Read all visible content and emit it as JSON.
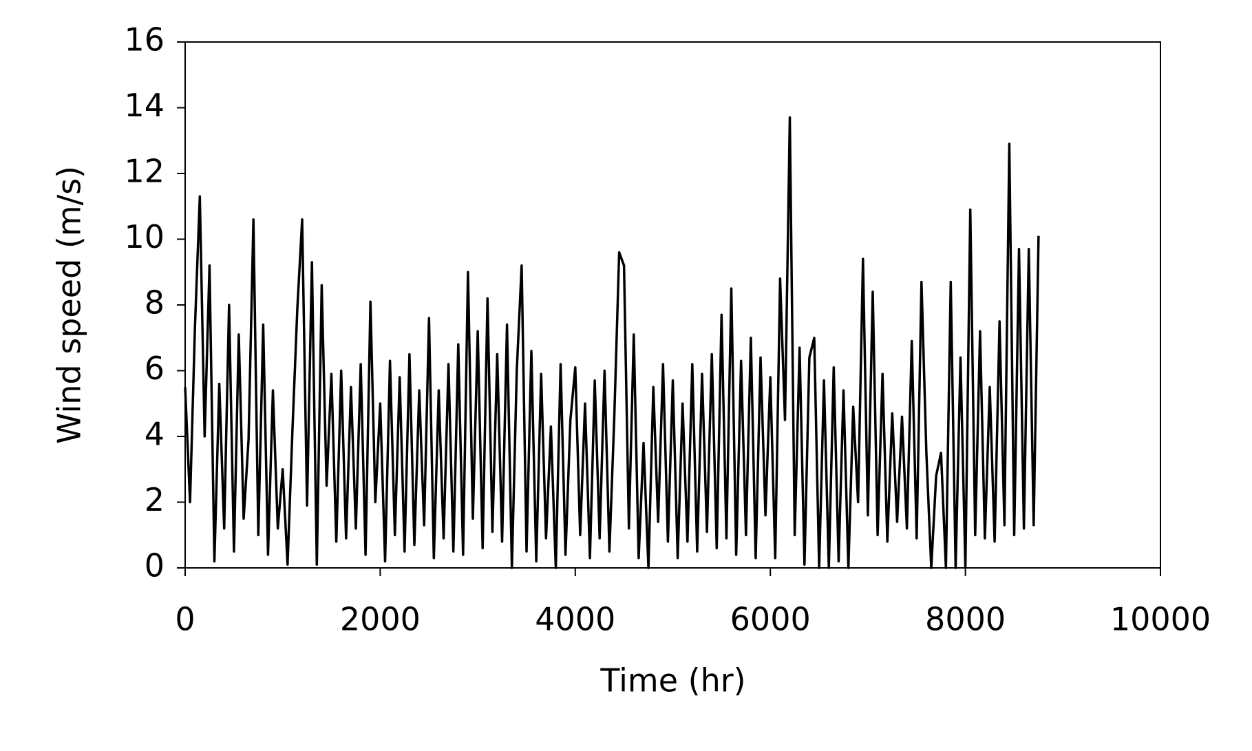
{
  "chart_data": {
    "type": "line",
    "x_label": "Time (hr)",
    "y_label": "Wind speed (m/s)",
    "x": [
      0,
      50,
      100,
      150,
      200,
      250,
      300,
      350,
      400,
      450,
      500,
      550,
      600,
      650,
      700,
      750,
      800,
      850,
      900,
      950,
      1000,
      1050,
      1100,
      1150,
      1200,
      1250,
      1300,
      1350,
      1400,
      1450,
      1500,
      1550,
      1600,
      1650,
      1700,
      1750,
      1800,
      1850,
      1900,
      1950,
      2000,
      2050,
      2100,
      2150,
      2200,
      2250,
      2300,
      2350,
      2400,
      2450,
      2500,
      2550,
      2600,
      2650,
      2700,
      2750,
      2800,
      2850,
      2900,
      2950,
      3000,
      3050,
      3100,
      3150,
      3200,
      3250,
      3300,
      3350,
      3400,
      3450,
      3500,
      3550,
      3600,
      3650,
      3700,
      3750,
      3800,
      3850,
      3900,
      3950,
      4000,
      4050,
      4100,
      4150,
      4200,
      4250,
      4300,
      4350,
      4400,
      4450,
      4500,
      4550,
      4600,
      4650,
      4700,
      4750,
      4800,
      4850,
      4900,
      4950,
      5000,
      5050,
      5100,
      5150,
      5200,
      5250,
      5300,
      5350,
      5400,
      5450,
      5500,
      5550,
      5600,
      5650,
      5700,
      5750,
      5800,
      5850,
      5900,
      5950,
      6000,
      6050,
      6100,
      6150,
      6200,
      6250,
      6300,
      6350,
      6400,
      6450,
      6500,
      6550,
      6600,
      6650,
      6700,
      6750,
      6800,
      6850,
      6900,
      6950,
      7000,
      7050,
      7100,
      7150,
      7200,
      7250,
      7300,
      7350,
      7400,
      7450,
      7500,
      7550,
      7600,
      7650,
      7700,
      7750,
      7800,
      7850,
      7900,
      7950,
      8000,
      8050,
      8100,
      8150,
      8200,
      8250,
      8300,
      8350,
      8400,
      8450,
      8500,
      8550,
      8600,
      8650,
      8700,
      8750
    ],
    "series": [
      {
        "name": "Wind speed",
        "color": "#000000",
        "values": [
          5.5,
          2.0,
          7.3,
          11.3,
          4.0,
          9.2,
          0.2,
          5.6,
          1.2,
          8.0,
          0.5,
          7.1,
          1.5,
          3.9,
          10.6,
          1.0,
          7.4,
          0.4,
          5.4,
          1.2,
          3.0,
          0.1,
          4.2,
          7.9,
          10.6,
          1.9,
          9.3,
          0.1,
          8.6,
          2.5,
          5.9,
          0.8,
          6.0,
          0.9,
          5.5,
          1.2,
          6.2,
          0.4,
          8.1,
          2.0,
          5.0,
          0.2,
          6.3,
          1.0,
          5.8,
          0.5,
          6.5,
          0.7,
          5.4,
          1.3,
          7.6,
          0.3,
          5.4,
          0.9,
          6.2,
          0.5,
          6.8,
          0.4,
          9.0,
          1.5,
          7.2,
          0.6,
          8.2,
          1.1,
          6.5,
          0.8,
          7.4,
          0.0,
          6.0,
          9.2,
          0.5,
          6.6,
          0.2,
          5.9,
          0.9,
          4.3,
          0.0,
          6.2,
          0.4,
          4.5,
          6.1,
          1.0,
          5.0,
          0.3,
          5.7,
          0.9,
          6.0,
          0.5,
          4.6,
          9.6,
          9.2,
          1.2,
          7.1,
          0.3,
          3.8,
          0.0,
          5.5,
          1.4,
          6.2,
          0.8,
          5.7,
          0.3,
          5.0,
          0.8,
          6.2,
          0.5,
          5.9,
          1.1,
          6.5,
          0.6,
          7.7,
          0.9,
          8.5,
          0.4,
          6.3,
          1.0,
          7.0,
          0.3,
          6.4,
          1.6,
          5.8,
          0.3,
          8.8,
          4.5,
          13.7,
          1.0,
          6.7,
          0.1,
          6.4,
          7.0,
          0.0,
          5.7,
          0.0,
          6.1,
          0.2,
          5.4,
          0.0,
          4.9,
          2.0,
          9.4,
          1.6,
          8.4,
          1.0,
          5.9,
          0.8,
          4.7,
          1.4,
          4.6,
          1.2,
          6.9,
          0.9,
          8.7,
          3.5,
          0.0,
          2.8,
          3.5,
          0.0,
          8.7,
          0.0,
          6.4,
          0.0,
          10.9,
          1.0,
          7.2,
          0.9,
          5.5,
          0.8,
          7.5,
          1.3,
          12.9,
          1.0,
          9.7,
          1.2,
          9.7,
          1.3,
          10.1
        ]
      }
    ],
    "xlim": [
      0,
      10000
    ],
    "xticks": [
      0,
      2000,
      4000,
      6000,
      8000,
      10000
    ],
    "ylim": [
      0,
      16
    ],
    "yticks": [
      0,
      2,
      4,
      6,
      8,
      10,
      12,
      14,
      16
    ],
    "grid": false
  }
}
